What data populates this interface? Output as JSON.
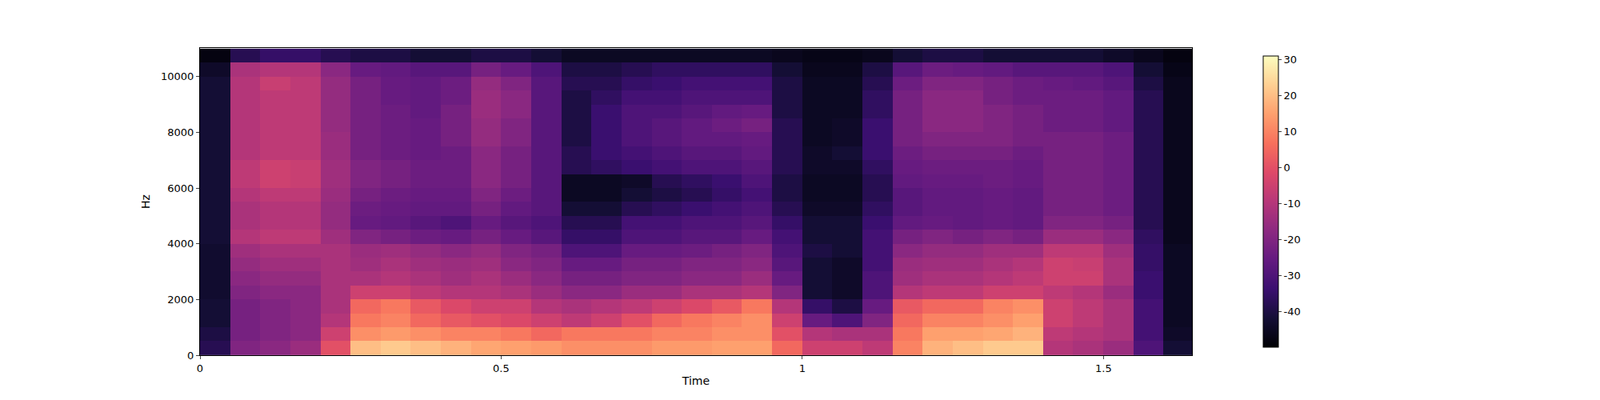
{
  "chart_data": {
    "type": "heatmap",
    "x_label": "Time",
    "y_label": "Hz",
    "xlim": [
      0,
      1.647
    ],
    "ylim": [
      0,
      11025
    ],
    "xticks": [
      0,
      0.5,
      1,
      1.5
    ],
    "yticks": [
      0,
      2000,
      4000,
      6000,
      8000,
      10000
    ],
    "colorbar_range": [
      -50,
      31
    ],
    "colorbar_ticks": [
      -40,
      -30,
      -20,
      -10,
      0,
      10,
      20,
      30
    ],
    "x": [
      0.025,
      0.075,
      0.125,
      0.175,
      0.225,
      0.275,
      0.325,
      0.375,
      0.425,
      0.475,
      0.525,
      0.575,
      0.625,
      0.675,
      0.725,
      0.775,
      0.825,
      0.875,
      0.925,
      0.975,
      1.025,
      1.075,
      1.125,
      1.175,
      1.225,
      1.275,
      1.325,
      1.375,
      1.425,
      1.475,
      1.525,
      1.575,
      1.625
    ],
    "y": [
      250,
      750,
      1250,
      1750,
      2250,
      2750,
      3250,
      3750,
      4250,
      4750,
      5250,
      5750,
      6250,
      6750,
      7250,
      7750,
      8250,
      8750,
      9250,
      9750,
      10250,
      10750
    ],
    "z": [
      [
        -38,
        -20,
        -18,
        -15,
        0,
        20,
        22,
        20,
        18,
        16,
        15,
        14,
        12,
        12,
        12,
        14,
        14,
        15,
        15,
        5,
        -5,
        -5,
        -8,
        10,
        18,
        20,
        22,
        22,
        -10,
        -12,
        -15,
        -30,
        -42
      ],
      [
        -40,
        -22,
        -20,
        -18,
        -5,
        12,
        14,
        12,
        10,
        10,
        8,
        5,
        8,
        8,
        8,
        10,
        10,
        12,
        12,
        0,
        -10,
        -12,
        -12,
        8,
        15,
        15,
        16,
        18,
        -8,
        -10,
        -12,
        -32,
        -44
      ],
      [
        -42,
        -22,
        -20,
        -18,
        -10,
        8,
        10,
        5,
        2,
        0,
        -2,
        -5,
        -8,
        -5,
        0,
        5,
        8,
        10,
        12,
        -5,
        -25,
        -30,
        -20,
        5,
        10,
        10,
        12,
        15,
        -5,
        -8,
        -12,
        -32,
        -45
      ],
      [
        -42,
        -22,
        -20,
        -18,
        -12,
        5,
        8,
        2,
        -2,
        -5,
        -5,
        -10,
        -12,
        -10,
        -8,
        -5,
        -2,
        2,
        8,
        -10,
        -35,
        -40,
        -25,
        2,
        5,
        5,
        10,
        12,
        -5,
        -8,
        -12,
        -32,
        -45
      ],
      [
        -43,
        -20,
        -18,
        -18,
        -12,
        -5,
        -5,
        -8,
        -10,
        -10,
        -12,
        -15,
        -18,
        -18,
        -15,
        -15,
        -12,
        -12,
        -10,
        -20,
        -42,
        -44,
        -30,
        -10,
        -8,
        -8,
        -5,
        -5,
        -8,
        -10,
        -15,
        -34,
        -45
      ],
      [
        -43,
        -18,
        -16,
        -16,
        -12,
        -12,
        -10,
        -12,
        -14,
        -12,
        -15,
        -18,
        -22,
        -22,
        -20,
        -20,
        -18,
        -18,
        -15,
        -25,
        -42,
        -44,
        -30,
        -14,
        -12,
        -12,
        -10,
        -8,
        -5,
        -5,
        -12,
        -34,
        -45
      ],
      [
        -43,
        -16,
        -14,
        -14,
        -12,
        -14,
        -12,
        -14,
        -15,
        -14,
        -18,
        -20,
        -25,
        -25,
        -22,
        -22,
        -20,
        -20,
        -18,
        -28,
        -42,
        -44,
        -32,
        -15,
        -14,
        -14,
        -12,
        -10,
        -5,
        -6,
        -12,
        -35,
        -45
      ],
      [
        -43,
        -14,
        -12,
        -12,
        -12,
        -15,
        -14,
        -16,
        -18,
        -16,
        -20,
        -22,
        -30,
        -30,
        -25,
        -25,
        -24,
        -22,
        -20,
        -30,
        -40,
        -42,
        -32,
        -18,
        -16,
        -16,
        -14,
        -14,
        -8,
        -8,
        -14,
        -35,
        -45
      ],
      [
        -42,
        -10,
        -8,
        -8,
        -14,
        -20,
        -22,
        -24,
        -25,
        -22,
        -25,
        -28,
        -35,
        -35,
        -30,
        -30,
        -28,
        -28,
        -25,
        -32,
        -42,
        -42,
        -32,
        -22,
        -20,
        -22,
        -20,
        -22,
        -15,
        -15,
        -18,
        -36,
        -46
      ],
      [
        -42,
        -12,
        -10,
        -10,
        -16,
        -25,
        -26,
        -28,
        -30,
        -25,
        -28,
        -30,
        -38,
        -38,
        -32,
        -32,
        -30,
        -30,
        -28,
        -35,
        -42,
        -42,
        -34,
        -26,
        -25,
        -26,
        -25,
        -26,
        -20,
        -20,
        -22,
        -38,
        -46
      ],
      [
        -42,
        -12,
        -10,
        -10,
        -16,
        -24,
        -25,
        -26,
        -26,
        -22,
        -26,
        -28,
        -42,
        -42,
        -38,
        -36,
        -34,
        -32,
        -30,
        -38,
        -44,
        -44,
        -36,
        -28,
        -26,
        -26,
        -25,
        -26,
        -22,
        -22,
        -24,
        -38,
        -46
      ],
      [
        -42,
        -10,
        -8,
        -8,
        -15,
        -22,
        -24,
        -25,
        -25,
        -20,
        -24,
        -28,
        -45,
        -45,
        -42,
        -40,
        -38,
        -35,
        -32,
        -40,
        -45,
        -45,
        -38,
        -28,
        -26,
        -26,
        -25,
        -26,
        -22,
        -22,
        -24,
        -38,
        -46
      ],
      [
        -42,
        -8,
        -5,
        -6,
        -14,
        -20,
        -22,
        -24,
        -24,
        -18,
        -22,
        -28,
        -45,
        -45,
        -44,
        -38,
        -36,
        -34,
        -30,
        -40,
        -45,
        -45,
        -38,
        -26,
        -25,
        -25,
        -24,
        -25,
        -22,
        -22,
        -24,
        -38,
        -46
      ],
      [
        -42,
        -8,
        -5,
        -6,
        -14,
        -20,
        -22,
        -24,
        -24,
        -18,
        -22,
        -28,
        -38,
        -36,
        -34,
        -32,
        -30,
        -30,
        -28,
        -38,
        -44,
        -44,
        -36,
        -25,
        -24,
        -24,
        -24,
        -25,
        -22,
        -22,
        -24,
        -38,
        -46
      ],
      [
        -42,
        -10,
        -8,
        -8,
        -15,
        -22,
        -24,
        -25,
        -24,
        -18,
        -22,
        -28,
        -38,
        -34,
        -32,
        -30,
        -28,
        -28,
        -26,
        -38,
        -44,
        -42,
        -34,
        -24,
        -22,
        -22,
        -22,
        -24,
        -22,
        -22,
        -24,
        -38,
        -46
      ],
      [
        -42,
        -10,
        -8,
        -8,
        -15,
        -22,
        -24,
        -25,
        -22,
        -16,
        -20,
        -28,
        -40,
        -34,
        -30,
        -28,
        -26,
        -26,
        -25,
        -38,
        -45,
        -44,
        -34,
        -22,
        -20,
        -20,
        -20,
        -22,
        -22,
        -22,
        -24,
        -38,
        -46
      ],
      [
        -42,
        -10,
        -8,
        -8,
        -16,
        -22,
        -24,
        -25,
        -22,
        -16,
        -20,
        -28,
        -40,
        -34,
        -30,
        -28,
        -26,
        -24,
        -22,
        -38,
        -45,
        -44,
        -34,
        -22,
        -18,
        -18,
        -20,
        -22,
        -24,
        -24,
        -26,
        -38,
        -46
      ],
      [
        -42,
        -10,
        -8,
        -8,
        -16,
        -22,
        -24,
        -26,
        -22,
        -15,
        -18,
        -28,
        -40,
        -34,
        -30,
        -30,
        -28,
        -26,
        -25,
        -40,
        -45,
        -45,
        -36,
        -22,
        -18,
        -18,
        -20,
        -22,
        -24,
        -24,
        -26,
        -38,
        -46
      ],
      [
        -42,
        -10,
        -8,
        -8,
        -16,
        -22,
        -25,
        -26,
        -24,
        -15,
        -18,
        -28,
        -40,
        -36,
        -32,
        -32,
        -30,
        -30,
        -30,
        -40,
        -45,
        -45,
        -36,
        -22,
        -18,
        -18,
        -22,
        -24,
        -24,
        -24,
        -26,
        -38,
        -46
      ],
      [
        -42,
        -10,
        -6,
        -8,
        -16,
        -22,
        -25,
        -26,
        -24,
        -16,
        -20,
        -28,
        -38,
        -38,
        -35,
        -34,
        -32,
        -32,
        -32,
        -40,
        -45,
        -45,
        -38,
        -24,
        -20,
        -20,
        -22,
        -24,
        -25,
        -26,
        -28,
        -40,
        -46
      ],
      [
        -44,
        -12,
        -10,
        -10,
        -18,
        -25,
        -26,
        -28,
        -28,
        -22,
        -25,
        -30,
        -40,
        -40,
        -38,
        -36,
        -36,
        -36,
        -36,
        -42,
        -46,
        -46,
        -40,
        -28,
        -24,
        -25,
        -26,
        -28,
        -28,
        -28,
        -30,
        -42,
        -47
      ],
      [
        -48,
        -38,
        -35,
        -35,
        -38,
        -40,
        -40,
        -42,
        -42,
        -40,
        -40,
        -42,
        -45,
        -45,
        -45,
        -45,
        -45,
        -45,
        -45,
        -46,
        -47,
        -47,
        -46,
        -42,
        -40,
        -40,
        -42,
        -42,
        -42,
        -42,
        -44,
        -46,
        -48
      ]
    ]
  }
}
